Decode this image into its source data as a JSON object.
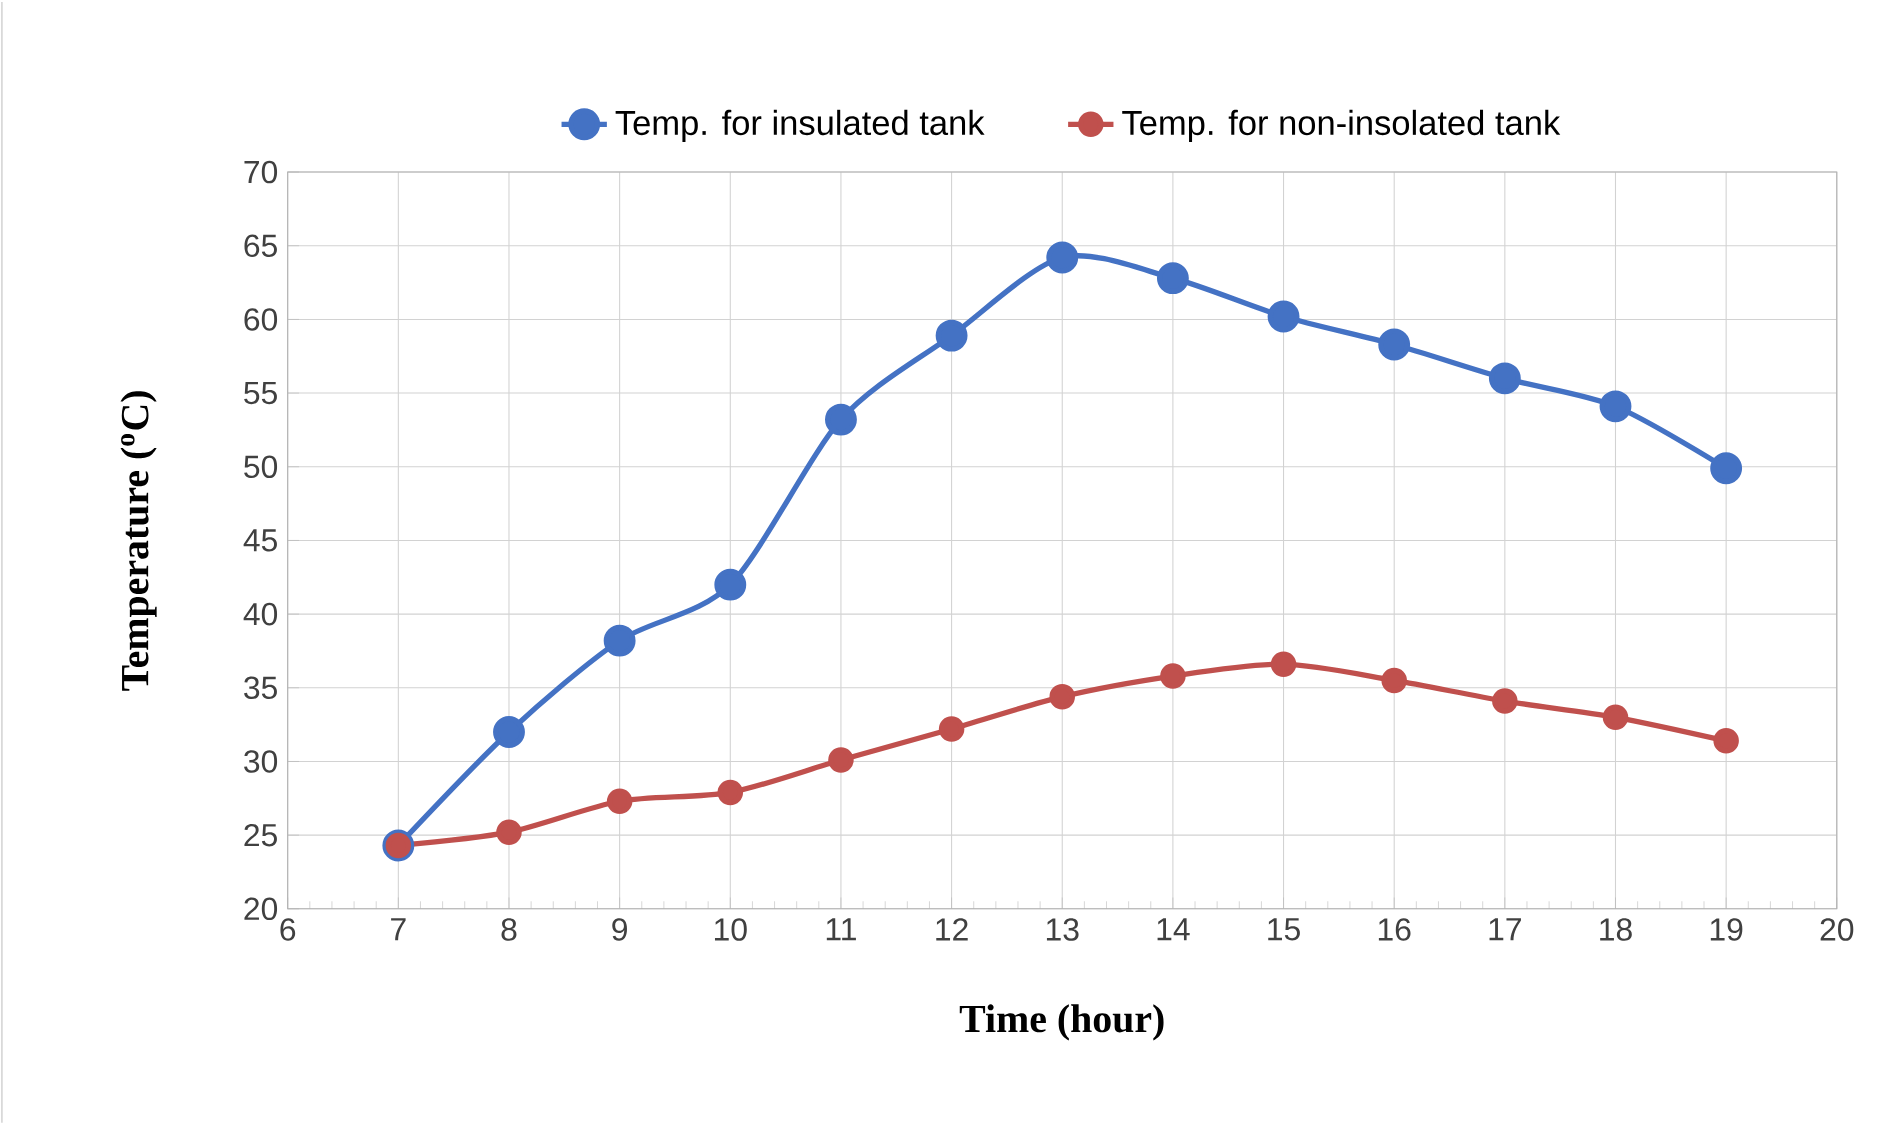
{
  "chart_data": {
    "type": "line",
    "xlabel": "Time  (hour)",
    "ylabel": "Temperature  ($^{o}$C)",
    "x": [
      7,
      8,
      9,
      10,
      11,
      12,
      13,
      14,
      15,
      16,
      17,
      18,
      19
    ],
    "series": [
      {
        "name": "Temp. for insulated tank",
        "color": "#4472c4",
        "values": [
          24.3,
          32.0,
          38.2,
          42.0,
          53.2,
          58.9,
          64.2,
          62.8,
          60.2,
          58.3,
          56.0,
          54.1,
          49.9
        ]
      },
      {
        "name": "Temp. for non-insolated tank",
        "color": "#c0504d",
        "values": [
          24.3,
          25.2,
          27.3,
          27.9,
          30.1,
          32.2,
          34.4,
          35.8,
          36.6,
          35.5,
          34.1,
          33.0,
          31.4
        ]
      }
    ],
    "xlim": [
      6,
      20
    ],
    "xticks": [
      6,
      7,
      8,
      9,
      10,
      11,
      12,
      13,
      14,
      15,
      16,
      17,
      18,
      19,
      20
    ],
    "ylim": [
      20,
      70
    ],
    "yticks": [
      20,
      25,
      30,
      35,
      40,
      45,
      50,
      55,
      60,
      65,
      70
    ],
    "grid": true,
    "legend": "top",
    "marker": "circle",
    "line_style": "solid"
  }
}
